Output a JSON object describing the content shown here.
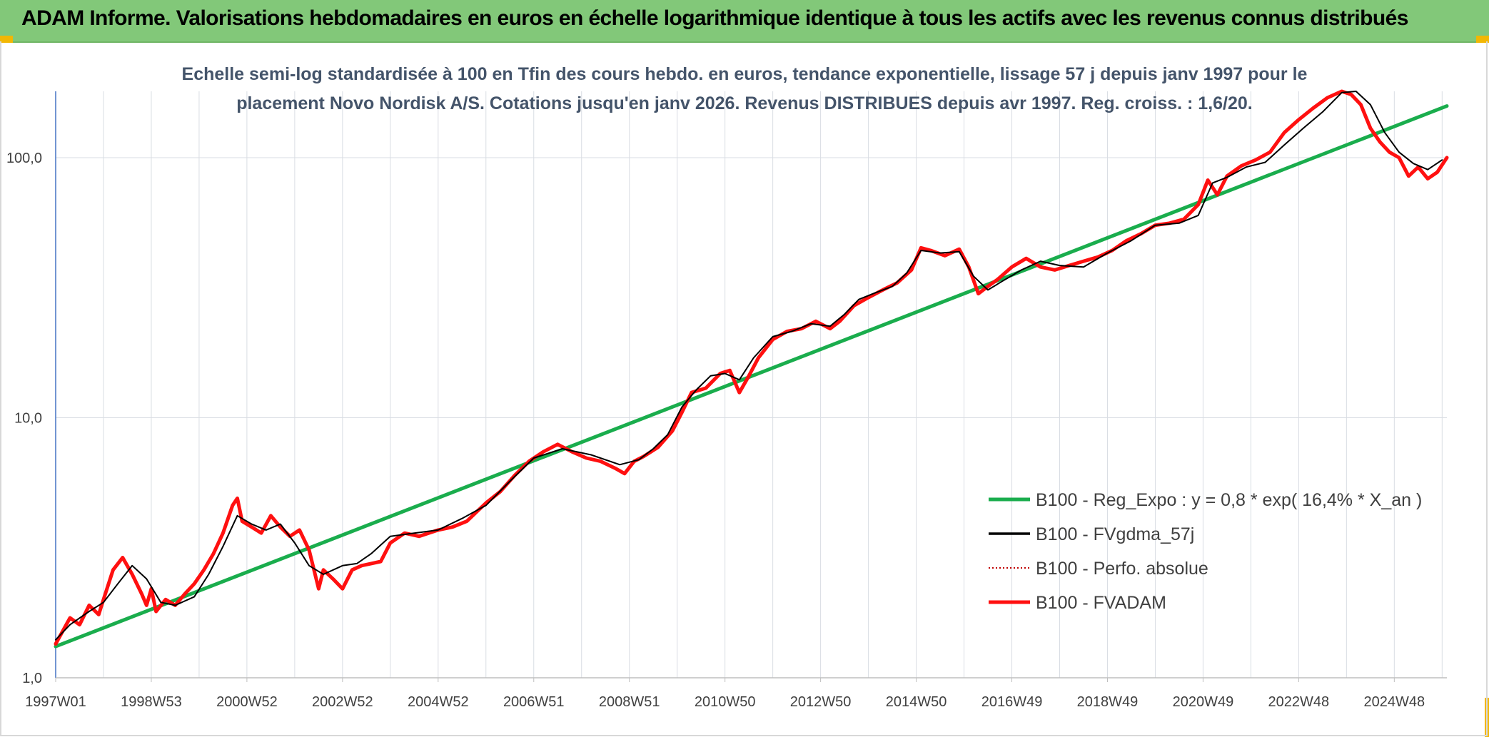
{
  "header": {
    "title": "ADAM Informe. Valorisations hebdomadaires en euros en échelle logarithmique identique à tous les actifs avec les revenus connus distribués"
  },
  "colors": {
    "header_bg": "#82c879",
    "corner_accent": "#f2b705",
    "reg_expo": "#1aad4d",
    "fvgdma": "#000000",
    "perfo": "#c00000",
    "fvadam": "#ff1010"
  },
  "chart_data": {
    "type": "line",
    "title_lines": [
      "Echelle semi-log standardisée à 100 en Tfin des cours hebdo. en euros, tendance exponentielle, lissage 57 j depuis janv 1997 pour le",
      "placement Novo Nordisk A/S. Cotations jusqu'en janv 2026. Revenus DISTRIBUES depuis avr 1997. Reg. croiss. : 1,6/20."
    ],
    "y_scale": "log",
    "ylim": [
      1,
      180
    ],
    "xlim": [
      1997.0,
      2026.1
    ],
    "y_ticks": [
      {
        "value": 1,
        "label": "1,0"
      },
      {
        "value": 10,
        "label": "10,0"
      },
      {
        "value": 100,
        "label": "100,0"
      }
    ],
    "x_ticks": [
      {
        "value": 1997.0,
        "label": "1997W01"
      },
      {
        "value": 1999.0,
        "label": "1998W53"
      },
      {
        "value": 2001.0,
        "label": "2000W52"
      },
      {
        "value": 2003.0,
        "label": "2002W52"
      },
      {
        "value": 2005.0,
        "label": "2004W52"
      },
      {
        "value": 2007.0,
        "label": "2006W51"
      },
      {
        "value": 2009.0,
        "label": "2008W51"
      },
      {
        "value": 2011.0,
        "label": "2010W50"
      },
      {
        "value": 2013.0,
        "label": "2012W50"
      },
      {
        "value": 2015.0,
        "label": "2014W50"
      },
      {
        "value": 2017.0,
        "label": "2016W49"
      },
      {
        "value": 2019.0,
        "label": "2018W49"
      },
      {
        "value": 2021.0,
        "label": "2020W49"
      },
      {
        "value": 2023.0,
        "label": "2022W48"
      },
      {
        "value": 2025.0,
        "label": "2024W48"
      }
    ],
    "grid": "vertical and horizontal",
    "legend_position": "bottom-right",
    "series": [
      {
        "name": "B100 - Reg_Expo : y = 0,8 * exp( 16,4% *  X_an )",
        "style": "solid-thick",
        "color": "#1aad4d",
        "x": [
          1997.0,
          2026.1
        ],
        "y": [
          1.32,
          158
        ]
      },
      {
        "name": "B100 - FVgdma_57j",
        "style": "solid-thin",
        "color": "#000000",
        "x": [
          1997.0,
          1997.3,
          1997.7,
          1998.0,
          1998.3,
          1998.6,
          1998.9,
          1999.2,
          1999.5,
          1999.9,
          2000.2,
          2000.5,
          2000.8,
          2001.1,
          2001.4,
          2001.7,
          2002.0,
          2002.3,
          2002.6,
          2003.0,
          2003.3,
          2003.6,
          2004.0,
          2004.5,
          2005.0,
          2005.5,
          2006.0,
          2006.5,
          2007.0,
          2007.6,
          2008.2,
          2008.8,
          2009.2,
          2009.5,
          2009.8,
          2010.1,
          2010.4,
          2010.7,
          2011.0,
          2011.3,
          2011.6,
          2012.0,
          2012.4,
          2012.8,
          2013.2,
          2013.5,
          2013.8,
          2014.1,
          2014.5,
          2014.8,
          2015.1,
          2015.5,
          2015.9,
          2016.2,
          2016.5,
          2016.8,
          2017.2,
          2017.6,
          2018.0,
          2018.5,
          2019.0,
          2019.5,
          2020.0,
          2020.5,
          2020.9,
          2021.2,
          2021.5,
          2021.9,
          2022.3,
          2022.7,
          2023.1,
          2023.5,
          2023.9,
          2024.2,
          2024.5,
          2024.8,
          2025.1,
          2025.4,
          2025.7,
          2026.0
        ],
        "y": [
          1.4,
          1.6,
          1.8,
          1.95,
          2.3,
          2.7,
          2.4,
          1.95,
          1.9,
          2.05,
          2.5,
          3.2,
          4.2,
          3.9,
          3.7,
          3.9,
          3.3,
          2.7,
          2.5,
          2.7,
          2.75,
          3.0,
          3.5,
          3.6,
          3.7,
          4.1,
          4.6,
          5.7,
          7.0,
          7.6,
          7.2,
          6.6,
          6.9,
          7.6,
          8.6,
          11.0,
          12.8,
          14.5,
          14.8,
          14.0,
          17.0,
          20.5,
          21.5,
          23.0,
          22.5,
          25.0,
          28.5,
          30.0,
          32.0,
          36.0,
          44.0,
          43.0,
          43.5,
          35.0,
          31.0,
          33.5,
          37.0,
          40.0,
          38.5,
          38.0,
          43.0,
          48.0,
          55.0,
          56.0,
          60.0,
          80.0,
          84.0,
          92.0,
          96.0,
          112.0,
          130.0,
          150.0,
          178.0,
          185.0,
          160.0,
          125.0,
          105.0,
          95.0,
          90.0,
          98.0
        ]
      },
      {
        "name": "B100 - Perfo. absolue",
        "style": "dotted",
        "color": "#c00000"
      },
      {
        "name": "B100 - FVADAM",
        "style": "solid-thick",
        "color": "#ff1010",
        "x": [
          1997.0,
          1997.3,
          1997.5,
          1997.7,
          1997.9,
          1998.0,
          1998.2,
          1998.4,
          1998.6,
          1998.8,
          1998.9,
          1999.0,
          1999.1,
          1999.3,
          1999.5,
          1999.7,
          1999.9,
          2000.1,
          2000.3,
          2000.5,
          2000.7,
          2000.8,
          2000.9,
          2001.1,
          2001.3,
          2001.5,
          2001.7,
          2001.9,
          2002.1,
          2002.3,
          2002.5,
          2002.6,
          2002.8,
          2003.0,
          2003.2,
          2003.4,
          2003.6,
          2003.8,
          2004.0,
          2004.3,
          2004.6,
          2005.0,
          2005.3,
          2005.6,
          2006.0,
          2006.3,
          2006.6,
          2006.9,
          2007.2,
          2007.5,
          2007.8,
          2008.1,
          2008.4,
          2008.7,
          2008.9,
          2009.1,
          2009.3,
          2009.6,
          2009.9,
          2010.1,
          2010.3,
          2010.6,
          2010.9,
          2011.1,
          2011.3,
          2011.5,
          2011.7,
          2012.0,
          2012.3,
          2012.6,
          2012.9,
          2013.2,
          2013.4,
          2013.7,
          2014.0,
          2014.3,
          2014.6,
          2014.9,
          2015.1,
          2015.3,
          2015.6,
          2015.9,
          2016.1,
          2016.3,
          2016.5,
          2016.7,
          2017.0,
          2017.3,
          2017.6,
          2017.9,
          2018.2,
          2018.5,
          2018.8,
          2019.1,
          2019.4,
          2019.7,
          2020.0,
          2020.3,
          2020.6,
          2020.9,
          2021.1,
          2021.3,
          2021.5,
          2021.8,
          2022.1,
          2022.4,
          2022.7,
          2023.0,
          2023.3,
          2023.6,
          2023.9,
          2024.1,
          2024.3,
          2024.5,
          2024.7,
          2024.9,
          2025.1,
          2025.3,
          2025.5,
          2025.7,
          2025.9,
          2026.1
        ],
        "y": [
          1.35,
          1.7,
          1.6,
          1.9,
          1.75,
          2.0,
          2.6,
          2.9,
          2.5,
          2.1,
          1.9,
          2.2,
          1.8,
          2.0,
          1.9,
          2.1,
          2.3,
          2.6,
          3.0,
          3.6,
          4.6,
          4.9,
          4.0,
          3.8,
          3.6,
          4.2,
          3.8,
          3.5,
          3.7,
          3.1,
          2.2,
          2.6,
          2.4,
          2.2,
          2.6,
          2.7,
          2.75,
          2.8,
          3.3,
          3.6,
          3.5,
          3.7,
          3.8,
          4.0,
          4.7,
          5.2,
          6.0,
          6.8,
          7.4,
          7.9,
          7.4,
          7.0,
          6.8,
          6.4,
          6.1,
          6.8,
          7.1,
          7.7,
          8.9,
          10.5,
          12.5,
          13.0,
          14.8,
          15.2,
          12.5,
          14.5,
          17.0,
          20.0,
          21.5,
          22.0,
          23.5,
          22.0,
          23.5,
          27.0,
          29.0,
          31.0,
          33.0,
          37.0,
          45.0,
          44.0,
          42.0,
          44.5,
          38.0,
          30.0,
          32.0,
          34.0,
          38.0,
          41.0,
          38.0,
          37.0,
          38.5,
          40.0,
          41.5,
          44.0,
          48.0,
          51.0,
          55.0,
          56.0,
          58.0,
          66.0,
          82.0,
          72.0,
          85.0,
          93.0,
          98.0,
          105.0,
          125.0,
          140.0,
          155.0,
          170.0,
          190.0,
          175.0,
          160.0,
          130.0,
          115.0,
          105.0,
          100.0,
          85.0,
          92.0,
          83.0,
          88.0,
          100.0
        ]
      }
    ]
  }
}
